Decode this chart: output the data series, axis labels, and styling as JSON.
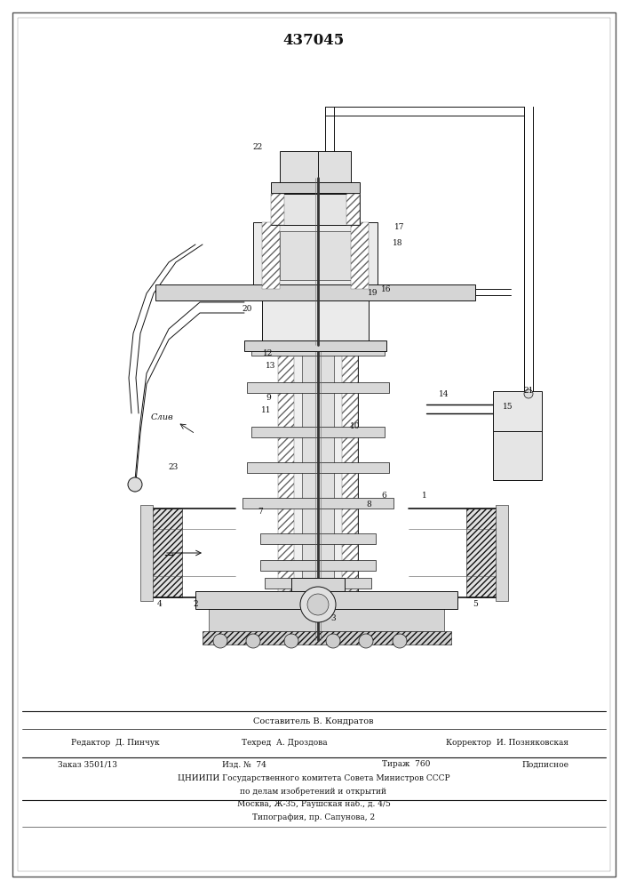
{
  "patent_number": "437045",
  "page_color": "#ffffff",
  "footer": {
    "compiler_line": "Составитель В. Кондратов",
    "editor": "Редактор  Д. Пинчук",
    "techred": "Техред  А. Дроздова",
    "corrector": "Корректор  И. Позняковская",
    "order": "Заказ 3501/13",
    "izd": "Изд. №  74",
    "tirazh": "Тираж  760",
    "podpisnoe": "Подписное",
    "tsniip": "ЦНИИПИ Государственного комитета Совета Министров СССР",
    "po_delam": "по делам изобретений и открытий",
    "moscow": "Москва, Ж-35, Раушская наб., д. 4/5",
    "tipografiya": "Типография, пр. Сапунова, 2"
  },
  "col": "#111111",
  "col_light": "#888888",
  "col_hatch": "#444444",
  "lw_thin": 0.4,
  "lw_med": 0.7,
  "lw_thick": 1.2,
  "lw_border": 1.0
}
